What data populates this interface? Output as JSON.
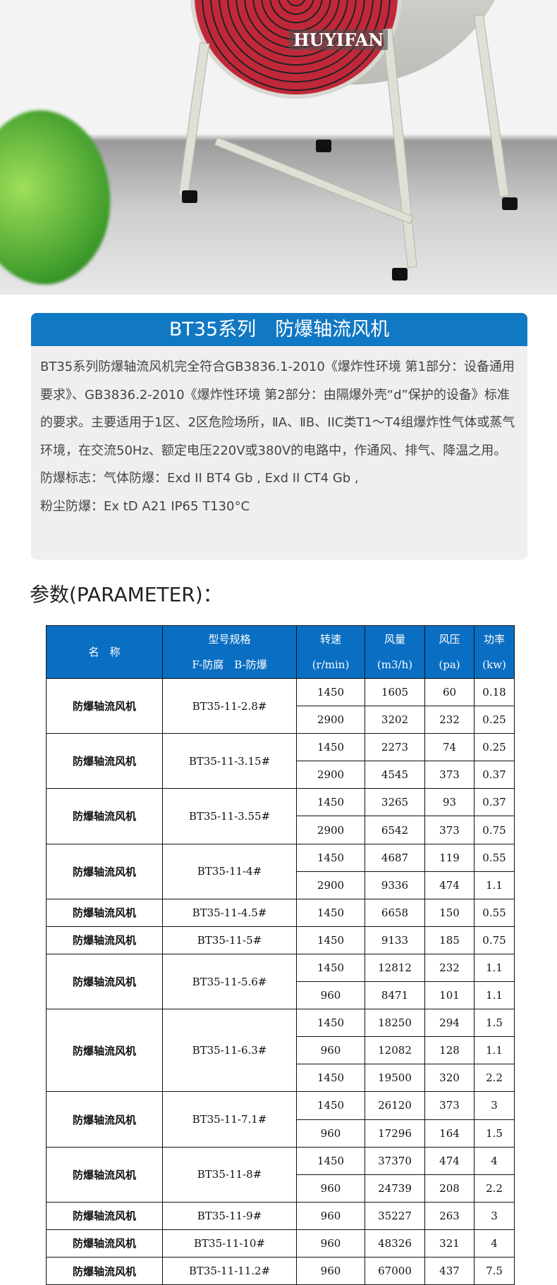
{
  "hero": {
    "brand": "HUYIFAN"
  },
  "intro": {
    "title": "BT35系列　防爆轴流风机",
    "paragraph": "BT35系列防爆轴流风机完全符合GB3836.1-2010《爆炸性环境 第1部分：设备通用要求》、GB3836.2-2010《爆炸性环境 第2部分：由隔爆外壳“d”保护的设备》标准的要求。主要适用于1区、2区危险场所，ⅡA、ⅡB、IIC类T1～T4组爆炸性气体或蒸气环境，在交流50Hz、额定电压220V或380V的电路中，作通风、排气、降温之用。",
    "gas_mark": "防爆标志：气体防爆：Exd II BT4 Gb , Exd II CT4 Gb ,",
    "dust_mark": "粉尘防爆：Ex tD A21 IP65 T130°C"
  },
  "param_title": "参数(PARAMETER)：",
  "table": {
    "headers": [
      {
        "l1": "名　称",
        "l2": ""
      },
      {
        "l1": "型号规格",
        "l2": "F-防腐　B-防爆"
      },
      {
        "l1": "转速",
        "l2": "(r/min)"
      },
      {
        "l1": "风量",
        "l2": "(m3/h)"
      },
      {
        "l1": "风压",
        "l2": "(pa)"
      },
      {
        "l1": "功率",
        "l2": "(kw)"
      }
    ],
    "groups": [
      {
        "name": "防爆轴流风机",
        "model": "BT35-11-2.8#",
        "rows": [
          [
            "1450",
            "1605",
            "60",
            "0.18"
          ],
          [
            "2900",
            "3202",
            "232",
            "0.25"
          ]
        ]
      },
      {
        "name": "防爆轴流风机",
        "model": "BT35-11-3.15#",
        "rows": [
          [
            "1450",
            "2273",
            "74",
            "0.25"
          ],
          [
            "2900",
            "4545",
            "373",
            "0.37"
          ]
        ]
      },
      {
        "name": "防爆轴流风机",
        "model": "BT35-11-3.55#",
        "rows": [
          [
            "1450",
            "3265",
            "93",
            "0.37"
          ],
          [
            "2900",
            "6542",
            "373",
            "0.75"
          ]
        ]
      },
      {
        "name": "防爆轴流风机",
        "model": "BT35-11-4#",
        "rows": [
          [
            "1450",
            "4687",
            "119",
            "0.55"
          ],
          [
            "2900",
            "9336",
            "474",
            "1.1"
          ]
        ]
      },
      {
        "name": "防爆轴流风机",
        "model": "BT35-11-4.5#",
        "rows": [
          [
            "1450",
            "6658",
            "150",
            "0.55"
          ]
        ]
      },
      {
        "name": "防爆轴流风机",
        "model": "BT35-11-5#",
        "rows": [
          [
            "1450",
            "9133",
            "185",
            "0.75"
          ]
        ]
      },
      {
        "name": "防爆轴流风机",
        "model": "BT35-11-5.6#",
        "rows": [
          [
            "1450",
            "12812",
            "232",
            "1.1"
          ],
          [
            "960",
            "8471",
            "101",
            "1.1"
          ]
        ]
      },
      {
        "name": "防爆轴流风机",
        "model": "BT35-11-6.3#",
        "rows": [
          [
            "1450",
            "18250",
            "294",
            "1.5"
          ],
          [
            "960",
            "12082",
            "128",
            "1.1"
          ],
          [
            "1450",
            "19500",
            "320",
            "2.2"
          ]
        ]
      },
      {
        "name": "防爆轴流风机",
        "model": "BT35-11-7.1#",
        "rows": [
          [
            "1450",
            "26120",
            "373",
            "3"
          ],
          [
            "960",
            "17296",
            "164",
            "1.5"
          ]
        ]
      },
      {
        "name": "防爆轴流风机",
        "model": "BT35-11-8#",
        "rows": [
          [
            "1450",
            "37370",
            "474",
            "4"
          ],
          [
            "960",
            "24739",
            "208",
            "2.2"
          ]
        ]
      },
      {
        "name": "防爆轴流风机",
        "model": "BT35-11-9#",
        "rows": [
          [
            "960",
            "35227",
            "263",
            "3"
          ]
        ]
      },
      {
        "name": "防爆轴流风机",
        "model": "BT35-11-10#",
        "rows": [
          [
            "960",
            "48326",
            "321",
            "4"
          ]
        ]
      },
      {
        "name": "防爆轴流风机",
        "model": "BT35-11-11.2#",
        "rows": [
          [
            "960",
            "67000",
            "437",
            "7.5"
          ]
        ]
      }
    ]
  }
}
